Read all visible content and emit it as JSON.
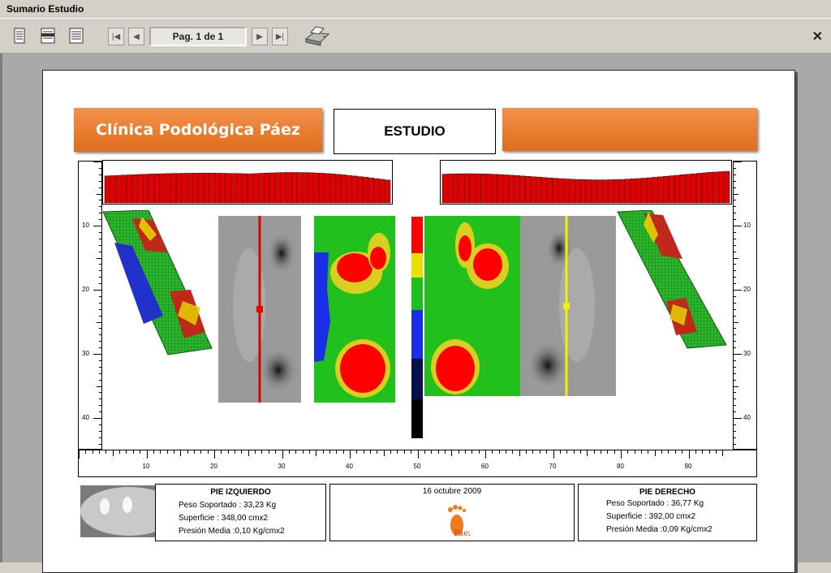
{
  "window": {
    "title": "Sumario Estudio"
  },
  "toolbar": {
    "page_label": "Pag. 1 de 1",
    "close_icon": "close-icon"
  },
  "report": {
    "clinic": "Clínica Podológica Páez",
    "study_label": "ESTUDIO",
    "date": "16 octubre 2009",
    "logo_text": "Páez",
    "left": {
      "title": "PIE IZQUIERDO",
      "weight": "Peso Soportado    : 33,23 Kg",
      "surface": "Superficie    : 348,00 cmx2",
      "pressure": "Presión Media :0,10 Kg/cmx2"
    },
    "right": {
      "title": "PIE DERECHO",
      "weight": "Peso Soportado    : 36,77 Kg",
      "surface": "Superficie    : 392,00 cmx2",
      "pressure": "Presión Media :0,09 Kg/cmx2"
    },
    "ruler_h": [
      "10",
      "20",
      "30",
      "40",
      "50",
      "60",
      "70",
      "80",
      "90"
    ],
    "ruler_v": [
      "10",
      "20",
      "30",
      "40"
    ]
  },
  "colors": {
    "orange": "#f08a3c",
    "red": "#ff0000",
    "green": "#21c01a",
    "yellow": "#f0e000",
    "blue": "#1a2ee8"
  }
}
